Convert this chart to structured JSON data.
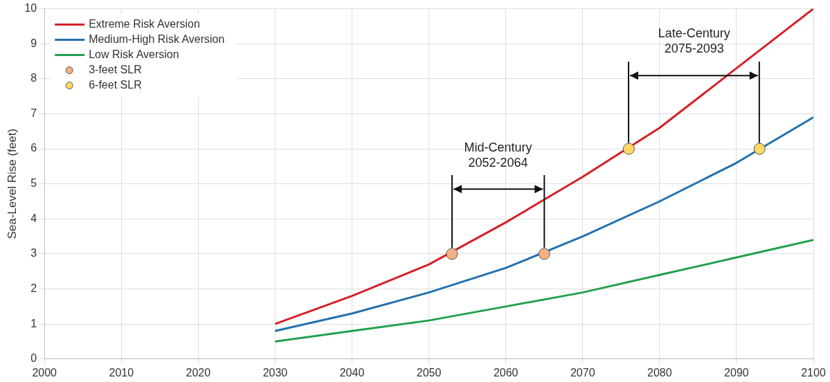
{
  "chart_data": {
    "type": "line",
    "ylabel": "Sea-Level Rise (feet)",
    "x": [
      2030,
      2040,
      2050,
      2060,
      2070,
      2080,
      2090,
      2100
    ],
    "series": [
      {
        "name": "Extreme Risk Aversion",
        "color": "#d42027",
        "values": [
          1.0,
          1.8,
          2.7,
          3.9,
          5.2,
          6.6,
          8.3,
          10.0
        ]
      },
      {
        "name": "Medium-High Risk Aversion",
        "color": "#2170b0",
        "values": [
          0.8,
          1.3,
          1.9,
          2.6,
          3.5,
          4.5,
          5.6,
          6.9
        ]
      },
      {
        "name": "Low Risk Aversion",
        "color": "#22a04e",
        "values": [
          0.5,
          0.8,
          1.1,
          1.5,
          1.9,
          2.4,
          2.9,
          3.4
        ]
      },
      {
        "name": "3-feet SLR",
        "type": "scatter",
        "marker": "circle",
        "color": "#f4b183",
        "x": [
          2053,
          2065
        ],
        "values": [
          3,
          3
        ]
      },
      {
        "name": "6-feet SLR",
        "type": "scatter",
        "marker": "circle",
        "color": "#ffd966",
        "x": [
          2076,
          2093
        ],
        "values": [
          6,
          6
        ]
      }
    ],
    "annotations": [
      "Mid-Century\n2052-2064",
      "Late-Century\n2075-2093"
    ],
    "xlim": [
      2000,
      2100
    ],
    "xticks": [
      2000,
      2010,
      2020,
      2030,
      2040,
      2050,
      2060,
      2070,
      2080,
      2090,
      2100
    ],
    "ylim": [
      0,
      10
    ],
    "yticks": [
      0,
      1,
      2,
      3,
      4,
      5,
      6,
      7,
      8,
      9,
      10
    ],
    "grid": true,
    "legend": "top left",
    "marker": "none",
    "line_style": "solid"
  }
}
